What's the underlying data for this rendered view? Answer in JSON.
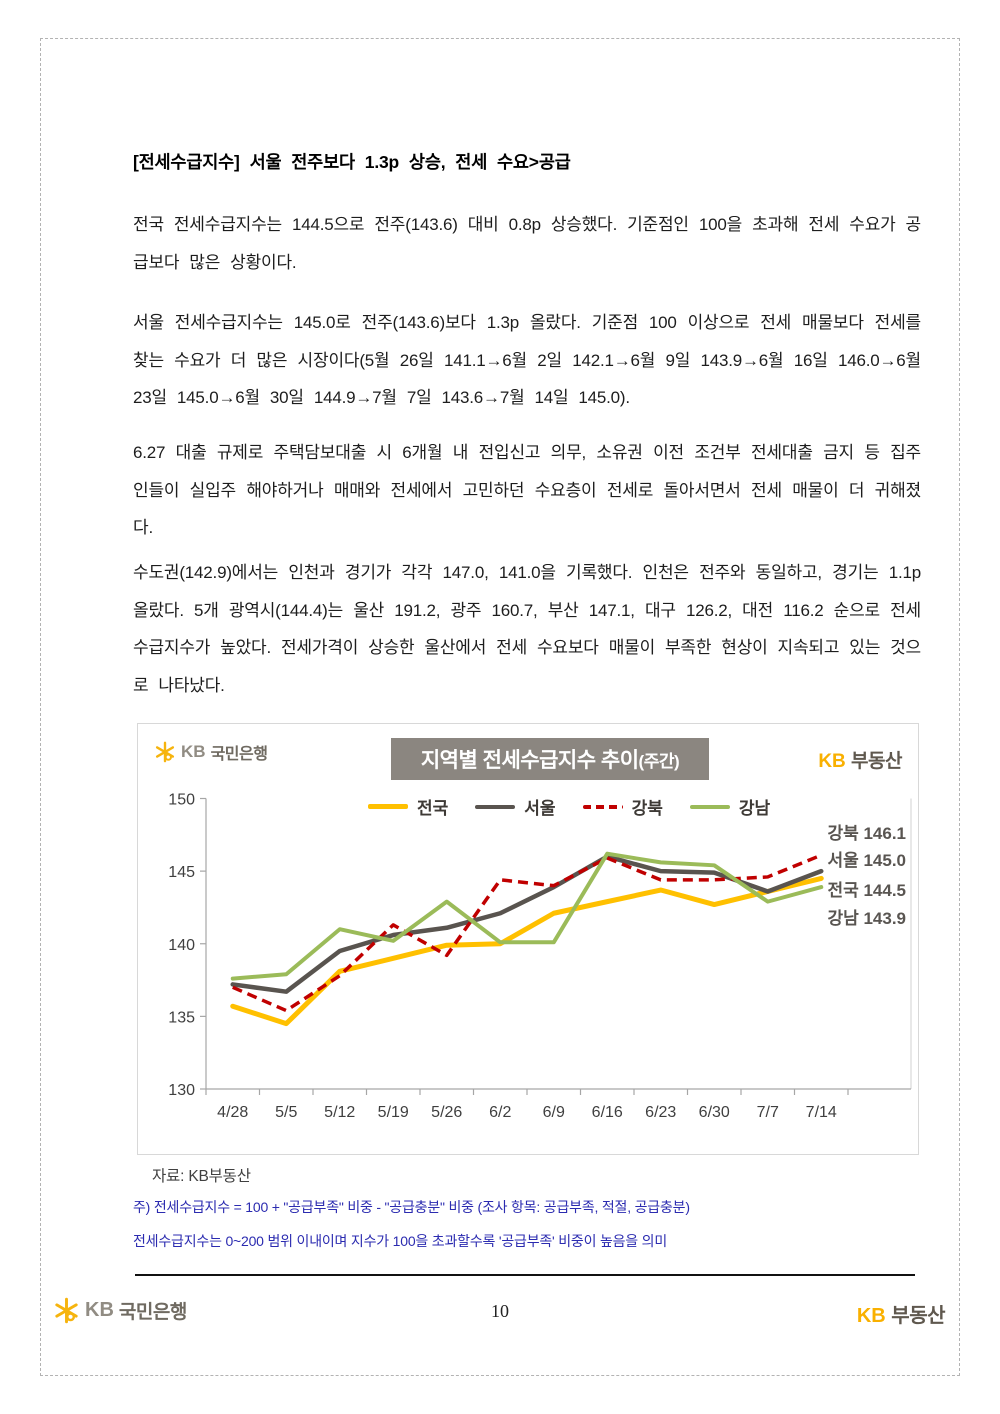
{
  "doc": {
    "title": "[전세수급지수] 서울 전주보다 1.3p 상승, 전세 수요>공급",
    "paragraphs": [
      "전국 전세수급지수는 144.5으로 전주(143.6) 대비 0.8p 상승했다. 기준점인 100을 초과해 전세 수요가 공급보다 많은 상황이다.",
      "서울 전세수급지수는 145.0로 전주(143.6)보다 1.3p 올랐다. 기준점 100 이상으로 전세 매물보다 전세를 찾는 수요가 더 많은 시장이다(5월 26일 141.1→6월 2일 142.1→6월 9일 143.9→6월 16일 146.0→6월 23일 145.0→6월 30일 144.9→7월 7일 143.6→7월 14일 145.0).",
      "6.27 대출 규제로 주택담보대출 시 6개월 내 전입신고 의무, 소유권 이전 조건부 전세대출 금지 등 집주인들이 실입주 해야하거나 매매와 전세에서 고민하던 수요층이 전세로 돌아서면서 전세 매물이 더 귀해졌다.",
      "수도권(142.9)에서는 인천과 경기가 각각 147.0, 141.0을 기록했다. 인천은 전주와 동일하고, 경기는 1.1p 올랐다. 5개 광역시(144.4)는 울산 191.2, 광주 160.7, 부산 147.1, 대구 126.2, 대전 116.2 순으로 전세수급지수가 높았다. 전세가격이 상승한 울산에서 전세 수요보다 매물이 부족한 현상이 지속되고 있는 것으로 나타났다."
    ],
    "page_number": "10"
  },
  "logos": {
    "bank_kb": "KB",
    "bank_name": "국민은행",
    "realty_kb": "KB",
    "realty_name": "부동산"
  },
  "notes": {
    "source": "자료: KB부동산",
    "note1": "주) 전세수급지수 = 100 + \"공급부족\" 비중 - \"공급충분\" 비중 (조사 항목: 공급부족, 적절, 공급충분)",
    "note2": "전세수급지수는 0~200 범위 이내이며 지수가 100을 초과할수록 '공급부족' 비중이 높음을 의미"
  },
  "chart_data": {
    "type": "line",
    "title": "지역별 전세수급지수 추이",
    "title_suffix": "(주간)",
    "legend_position": "top",
    "grid": false,
    "categories": [
      "4/28",
      "5/5",
      "5/12",
      "5/19",
      "5/26",
      "6/2",
      "6/9",
      "6/16",
      "6/23",
      "6/30",
      "7/7",
      "7/14"
    ],
    "ylim": [
      130,
      150
    ],
    "yticks": [
      130,
      135,
      140,
      145,
      150
    ],
    "series": [
      {
        "name": "전국",
        "color": "#FFC000",
        "dashed": false,
        "values": [
          135.7,
          134.5,
          138.1,
          139.0,
          139.9,
          140.0,
          142.1,
          142.9,
          143.7,
          142.7,
          143.6,
          144.5
        ]
      },
      {
        "name": "서울",
        "color": "#59544F",
        "dashed": false,
        "values": [
          137.2,
          136.7,
          139.5,
          140.6,
          141.1,
          142.1,
          143.9,
          146.0,
          145.0,
          144.9,
          143.6,
          145.0
        ]
      },
      {
        "name": "강북",
        "color": "#C00000",
        "dashed": true,
        "values": [
          137.0,
          135.4,
          137.8,
          141.3,
          139.2,
          144.4,
          144.0,
          145.9,
          144.4,
          144.4,
          144.6,
          146.1
        ]
      },
      {
        "name": "강남",
        "color": "#9BBB59",
        "dashed": false,
        "values": [
          137.6,
          137.9,
          141.0,
          140.2,
          142.9,
          140.1,
          140.1,
          146.2,
          145.6,
          145.4,
          142.9,
          143.9
        ]
      }
    ],
    "end_labels": [
      "강북 146.1",
      "서울 145.0",
      "전국 144.5",
      "강남 143.9"
    ]
  }
}
